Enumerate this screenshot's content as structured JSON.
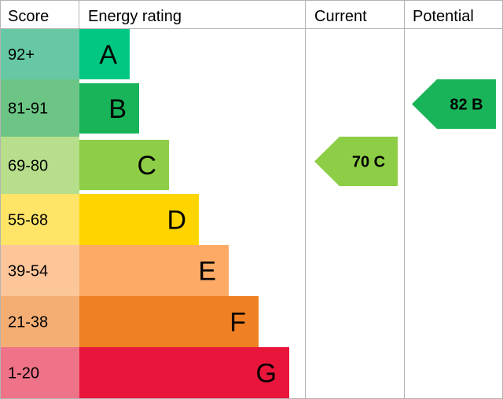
{
  "headers": {
    "score": "Score",
    "energy_rating": "Energy rating",
    "current": "Current",
    "potential": "Potential"
  },
  "chart_data": {
    "type": "bar",
    "title": "",
    "categories": [
      "A",
      "B",
      "C",
      "D",
      "E",
      "F",
      "G"
    ],
    "score_ranges": [
      "92+",
      "81-91",
      "69-80",
      "55-68",
      "39-54",
      "21-38",
      "1-20"
    ],
    "band_colors": [
      "#00c781",
      "#19b459",
      "#8dce46",
      "#ffd500",
      "#fcaa65",
      "#ef8023",
      "#e9153b"
    ],
    "score_colors": [
      "#66c9a4",
      "#6dc585",
      "#b7de8a",
      "#ffe467",
      "#fdc69a",
      "#f4ae74",
      "#ef7388"
    ],
    "current": {
      "label": "70 C",
      "value": 70,
      "band": "C",
      "color": "#8dce46"
    },
    "potential": {
      "label": "82 B",
      "value": 82,
      "band": "B",
      "color": "#19b459"
    }
  }
}
